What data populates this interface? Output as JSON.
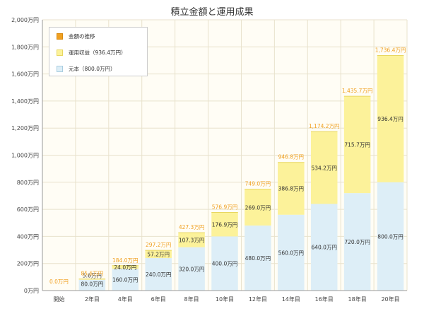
{
  "title": "積立金額と運用成果",
  "colors": {
    "principal": "#ddeef7",
    "gain": "#fcf29a",
    "gain_border": "#e8d760",
    "total": "#f0a020",
    "plot_bg": "#fffdf5",
    "grid": "#e8e2cc"
  },
  "legend": [
    {
      "label": "金額の推移",
      "color": "#f0a020",
      "border": "#d88a10"
    },
    {
      "label": "運用収益（936.4万円）",
      "color": "#fcf29a",
      "border": "#e8d760"
    },
    {
      "label": "元本（800.0万円）",
      "color": "#ddeef7",
      "border": "#a9cde0"
    }
  ],
  "chart_data": {
    "type": "bar",
    "stacked": true,
    "title": "積立金額と運用成果",
    "categories": [
      "開始",
      "2年目",
      "4年目",
      "6年目",
      "8年目",
      "10年目",
      "12年目",
      "14年目",
      "16年目",
      "18年目",
      "20年目"
    ],
    "series": [
      {
        "name": "元本",
        "values": [
          0,
          80.0,
          160.0,
          240.0,
          320.0,
          400.0,
          480.0,
          560.0,
          640.0,
          720.0,
          800.0
        ],
        "labels": [
          "",
          "80.0万円",
          "160.0万円",
          "240.0万円",
          "320.0万円",
          "400.0万円",
          "480.0万円",
          "560.0万円",
          "640.0万円",
          "720.0万円",
          "800.0万円"
        ]
      },
      {
        "name": "運用収益",
        "values": [
          0,
          5.6,
          24.0,
          57.2,
          107.3,
          176.9,
          269.0,
          386.8,
          534.2,
          715.7,
          936.4
        ],
        "labels": [
          "",
          "5.6万円",
          "24.0万円",
          "57.2万円",
          "107.3万円",
          "176.9万円",
          "269.0万円",
          "386.8万円",
          "534.2万円",
          "715.7万円",
          "936.4万円"
        ]
      }
    ],
    "totals": [
      0.0,
      85.6,
      184.0,
      297.2,
      427.3,
      576.9,
      749.0,
      946.8,
      1174.2,
      1435.7,
      1736.4
    ],
    "total_labels": [
      "0.0万円",
      "85.6万円",
      "184.0万円",
      "297.2万円",
      "427.3万円",
      "576.9万円",
      "749.0万円",
      "946.8万円",
      "1,174.2万円",
      "1,435.7万円",
      "1,736.4万円"
    ],
    "ylim": [
      0,
      2000
    ],
    "yticks": [
      0,
      200,
      400,
      600,
      800,
      1000,
      1200,
      1400,
      1600,
      1800,
      2000
    ],
    "ytick_labels": [
      "0万円",
      "200万円",
      "400万円",
      "600万円",
      "800万円",
      "1,000万円",
      "1,200万円",
      "1,400万円",
      "1,600万円",
      "1,800万円",
      "2,000万円"
    ],
    "grid": true,
    "legend_position": "top-left"
  }
}
